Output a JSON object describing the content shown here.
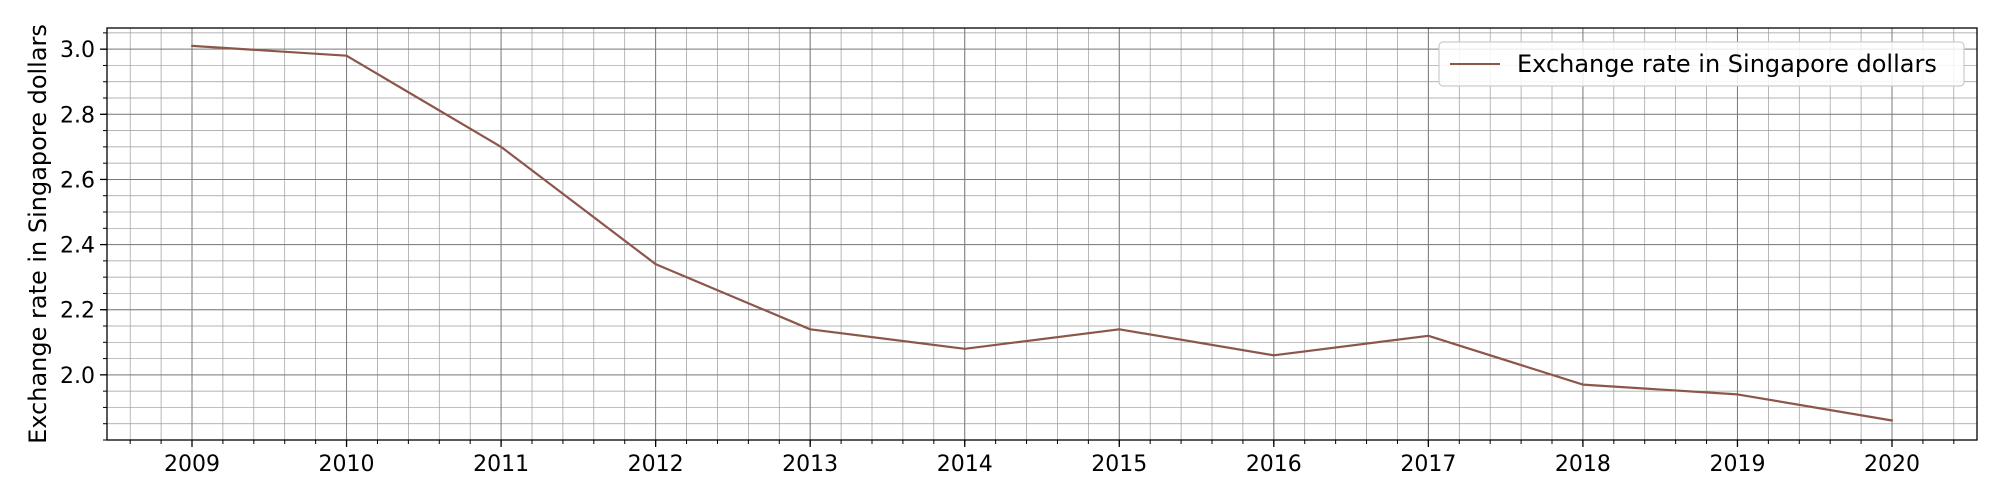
{
  "chart_data": {
    "type": "line",
    "title": "",
    "xlabel": "",
    "ylabel": "Exchange rate in Singapore dollars",
    "x": [
      2009,
      2010,
      2011,
      2012,
      2013,
      2014,
      2015,
      2016,
      2017,
      2018,
      2019,
      2020
    ],
    "series": [
      {
        "name": "Exchange rate in Singapore dollars",
        "color": "#8c564b",
        "values": [
          3.01,
          2.98,
          2.7,
          2.34,
          2.14,
          2.08,
          2.14,
          2.06,
          2.12,
          1.97,
          1.94,
          1.86
        ]
      }
    ],
    "xlim": [
      2008.45,
      2020.55
    ],
    "ylim": [
      1.8,
      3.065
    ],
    "xticks": [
      "2009",
      "2010",
      "2011",
      "2012",
      "2013",
      "2014",
      "2015",
      "2016",
      "2017",
      "2018",
      "2019",
      "2020"
    ],
    "yticks": [
      "2.0",
      "2.2",
      "2.4",
      "2.6",
      "2.8",
      "3.0"
    ],
    "grid": true,
    "minor_grid": true,
    "legend_position": "top-right"
  }
}
